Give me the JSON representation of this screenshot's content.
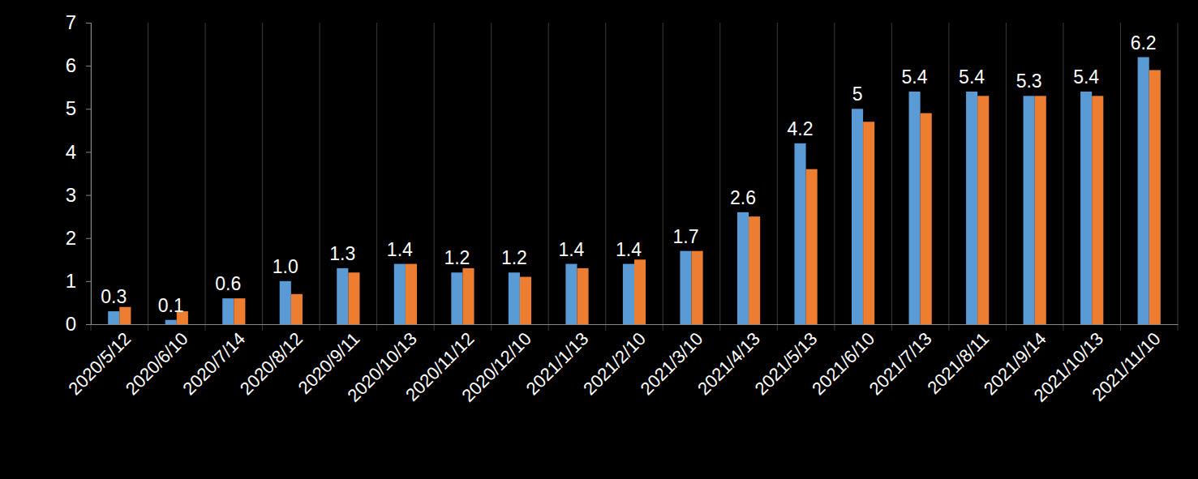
{
  "chart_data": {
    "type": "bar",
    "categories": [
      "2020/5/12",
      "2020/6/10",
      "2020/7/14",
      "2020/8/12",
      "2020/9/11",
      "2020/10/13",
      "2020/11/12",
      "2020/12/10",
      "2021/1/13",
      "2021/2/10",
      "2021/3/10",
      "2021/4/13",
      "2021/5/13",
      "2021/6/10",
      "2021/7/13",
      "2021/8/11",
      "2021/9/14",
      "2021/10/13",
      "2021/11/10"
    ],
    "series": [
      {
        "color": "#5b9bd5",
        "data_labels": true,
        "values": [
          0.3,
          0.1,
          0.6,
          1.0,
          1.3,
          1.4,
          1.2,
          1.2,
          1.4,
          1.4,
          1.7,
          2.6,
          4.2,
          5,
          5.4,
          5.4,
          5.3,
          5.4,
          6.2
        ],
        "value_labels": [
          "0.3",
          "0.1",
          "0.6",
          "1.0",
          "1.3",
          "1.4",
          "1.2",
          "1.2",
          "1.4",
          "1.4",
          "1.7",
          "2.6",
          "4.2",
          "5",
          "5.4",
          "5.4",
          "5.3",
          "5.4",
          "6.2"
        ]
      },
      {
        "color": "#ed7d31",
        "values": [
          0.4,
          0.3,
          0.6,
          0.7,
          1.2,
          1.4,
          1.3,
          1.1,
          1.3,
          1.5,
          1.7,
          2.5,
          3.6,
          4.7,
          4.9,
          5.3,
          5.3,
          5.3,
          5.9
        ]
      }
    ],
    "ylim": [
      0,
      7
    ],
    "yticks": [
      0,
      1,
      2,
      3,
      4,
      5,
      6,
      7
    ],
    "grid": true
  }
}
